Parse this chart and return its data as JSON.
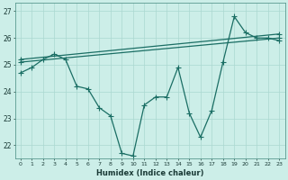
{
  "xlabel": "Humidex (Indice chaleur)",
  "bg_color": "#cceee8",
  "line_color": "#1a6e64",
  "grid_color": "#aad8d0",
  "ylim": [
    21.5,
    27.3
  ],
  "xlim": [
    -0.5,
    23.5
  ],
  "yticks": [
    22,
    23,
    24,
    25,
    26,
    27
  ],
  "xticks": [
    0,
    1,
    2,
    3,
    4,
    5,
    6,
    7,
    8,
    9,
    10,
    11,
    12,
    13,
    14,
    15,
    16,
    17,
    18,
    19,
    20,
    21,
    22,
    23
  ],
  "line1_x": [
    0,
    1,
    2,
    3,
    4,
    5,
    6,
    7,
    8,
    9,
    10,
    11,
    12,
    13,
    14,
    15,
    16,
    17,
    18,
    19,
    20,
    21,
    22,
    23
  ],
  "line1_y": [
    24.7,
    24.9,
    25.2,
    25.4,
    25.2,
    24.2,
    24.1,
    23.4,
    23.1,
    21.7,
    21.6,
    23.5,
    23.8,
    23.8,
    24.9,
    23.2,
    22.3,
    23.3,
    25.1,
    26.8,
    26.2,
    26.0,
    26.0,
    25.9
  ],
  "line2_x": [
    0,
    23
  ],
  "line2_y": [
    25.1,
    26.0
  ],
  "line3_x": [
    0,
    23
  ],
  "line3_y": [
    25.2,
    26.15
  ]
}
